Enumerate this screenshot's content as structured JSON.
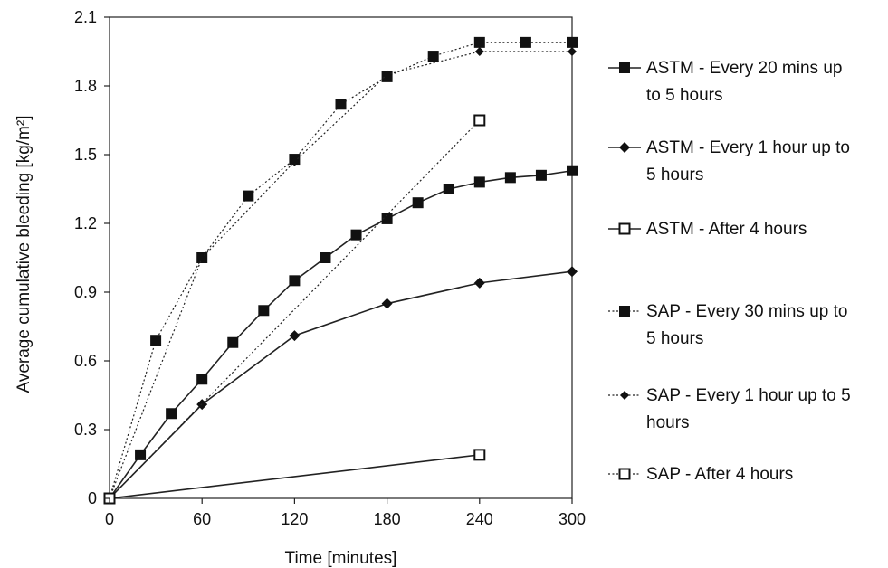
{
  "chart_data": {
    "type": "line",
    "title": "",
    "xlabel": "Time [minutes]",
    "ylabel": "Average cumulative bleeding [kg/m²]",
    "xlim": [
      0,
      300
    ],
    "ylim": [
      0,
      2.1
    ],
    "x_ticks": [
      "0",
      "60",
      "120",
      "180",
      "240",
      "300"
    ],
    "y_ticks": [
      "0",
      "0.3",
      "0.6",
      "0.9",
      "1.2",
      "1.5",
      "1.8",
      "2.1"
    ],
    "grid": false,
    "legend_position": "right",
    "series": [
      {
        "name": "ASTM - Every 20 mins up to 5 hours",
        "legend_lines": [
          "ASTM - Every 20 mins up",
          "to 5 hours"
        ],
        "line": "solid",
        "marker": "square-filled",
        "points": [
          [
            0,
            0
          ],
          [
            20,
            0.19
          ],
          [
            40,
            0.37
          ],
          [
            60,
            0.52
          ],
          [
            80,
            0.68
          ],
          [
            100,
            0.82
          ],
          [
            120,
            0.95
          ],
          [
            140,
            1.05
          ],
          [
            160,
            1.15
          ],
          [
            180,
            1.22
          ],
          [
            200,
            1.29
          ],
          [
            220,
            1.35
          ],
          [
            240,
            1.38
          ],
          [
            260,
            1.4
          ],
          [
            280,
            1.41
          ],
          [
            300,
            1.43
          ]
        ]
      },
      {
        "name": "ASTM - Every 1 hour up to 5 hours",
        "legend_lines": [
          "ASTM - Every 1 hour up to",
          "5 hours"
        ],
        "line": "solid",
        "marker": "diamond-filled",
        "points": [
          [
            0,
            0
          ],
          [
            60,
            0.41
          ],
          [
            120,
            0.71
          ],
          [
            180,
            0.85
          ],
          [
            240,
            0.94
          ],
          [
            300,
            0.99
          ]
        ]
      },
      {
        "name": "ASTM - After 4 hours",
        "legend_lines": [
          "ASTM - After 4 hours"
        ],
        "line": "solid",
        "marker": "square-open",
        "points": [
          [
            0,
            0
          ],
          [
            240,
            0.19
          ]
        ]
      },
      {
        "name": "SAP - Every 30 mins up to 5 hours",
        "legend_lines": [
          "SAP - Every 30 mins up to",
          "5 hours"
        ],
        "line": "dotted",
        "marker": "square-filled",
        "points": [
          [
            0,
            0
          ],
          [
            30,
            0.69
          ],
          [
            60,
            1.05
          ],
          [
            90,
            1.32
          ],
          [
            120,
            1.48
          ],
          [
            150,
            1.72
          ],
          [
            180,
            1.84
          ],
          [
            210,
            1.93
          ],
          [
            240,
            1.99
          ],
          [
            270,
            1.99
          ],
          [
            300,
            1.99
          ]
        ]
      },
      {
        "name": "SAP - Every 1 hour up to 5 hours",
        "legend_lines": [
          "SAP - Every 1 hour up to 5",
          "hours"
        ],
        "line": "dotted",
        "marker": "diamond-filled-small",
        "points": [
          [
            0,
            0
          ],
          [
            60,
            1.05
          ],
          [
            120,
            1.47
          ],
          [
            180,
            1.85
          ],
          [
            240,
            1.95
          ],
          [
            300,
            1.95
          ]
        ]
      },
      {
        "name": "SAP - After 4 hours",
        "legend_lines": [
          "SAP - After 4 hours"
        ],
        "line": "dotted",
        "marker": "square-open",
        "points": [
          [
            0,
            0
          ],
          [
            240,
            1.65
          ]
        ]
      }
    ]
  }
}
